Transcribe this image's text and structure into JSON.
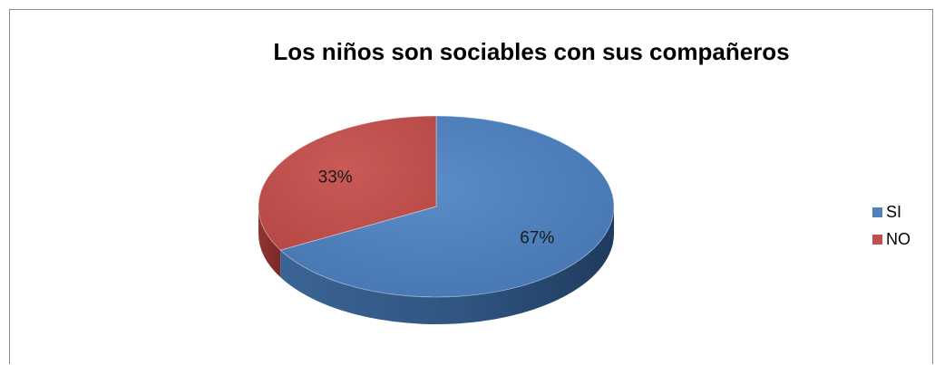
{
  "chart_data": {
    "type": "pie",
    "title": "Los niños son sociables con sus compañeros",
    "categories": [
      "SI",
      "NO"
    ],
    "values": [
      67,
      33
    ],
    "labels": [
      "67%",
      "33%"
    ],
    "colors": [
      "#4F81BD",
      "#C0504D"
    ],
    "legend_position": "right",
    "style": "3d"
  }
}
